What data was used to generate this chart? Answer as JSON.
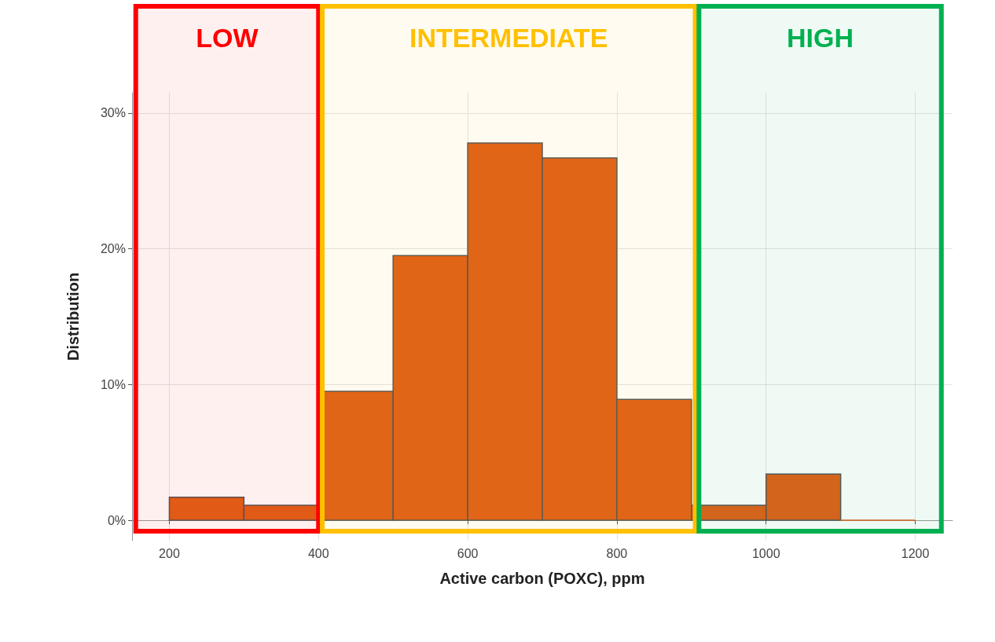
{
  "chart_data": {
    "type": "histogram",
    "xlabel": "Active carbon (POXC), ppm",
    "ylabel": "Distribution",
    "bins": [
      200,
      300,
      400,
      500,
      600,
      700,
      800,
      900,
      1000,
      1100,
      1200
    ],
    "values": [
      1.7,
      1.1,
      9.5,
      19.5,
      27.8,
      26.7,
      8.9,
      1.1,
      3.4,
      0
    ],
    "color": "#e06018",
    "xlim": [
      150,
      1250
    ],
    "xticks": [
      200,
      400,
      600,
      800,
      1000,
      1200
    ],
    "ylim": [
      -1.5,
      31.5
    ],
    "yticks": [
      {
        "value": 0,
        "label": "0%"
      },
      {
        "value": 10,
        "label": "10%"
      },
      {
        "value": 20,
        "label": "20%"
      },
      {
        "value": 30,
        "label": "30%"
      }
    ],
    "grid": true,
    "bands": [
      {
        "axis": "x",
        "from": 155,
        "to": 400,
        "label": "LOW",
        "color": "#ff0000"
      },
      {
        "axis": "x",
        "from": 405,
        "to": 905,
        "label": "INTERMEDIATE",
        "color": "#ffc000"
      },
      {
        "axis": "x",
        "from": 910,
        "to": 1235,
        "label": "HIGH",
        "color": "#00b050"
      }
    ]
  }
}
